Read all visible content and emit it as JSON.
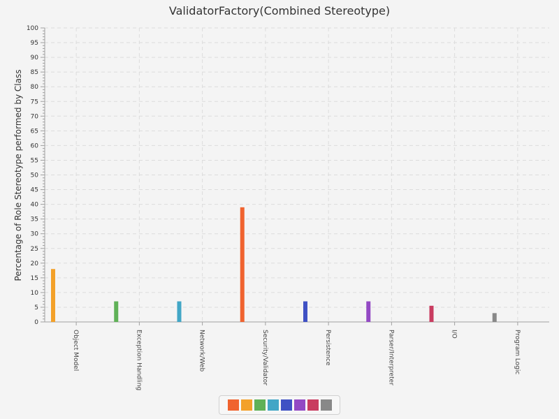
{
  "chart_data": {
    "type": "bar",
    "title": "ValidatorFactory(Combined Stereotype)",
    "xlabel": "",
    "ylabel": "Percentage of Role Stereotype performed by Class",
    "ylim": [
      0,
      100
    ],
    "y_ticks": [
      "0",
      "5",
      "10",
      "15",
      "20",
      "25",
      "30",
      "35",
      "40",
      "45",
      "50",
      "55",
      "60",
      "65",
      "70",
      "75",
      "80",
      "85",
      "90",
      "95",
      "100"
    ],
    "grid": true,
    "legend_placement": "bottom-center",
    "categories": [
      "Object Model",
      "Exception Handling",
      "Network/Web",
      "Security/Validator",
      "Persistence",
      "Parser/Interpreter",
      "I/O",
      "Program Logic"
    ],
    "values": [
      18,
      7,
      7,
      39,
      7,
      7,
      5.5,
      3
    ],
    "colors": [
      "#f3a12a",
      "#5fb157",
      "#42a6c6",
      "#f0632f",
      "#3f51c4",
      "#9349c4",
      "#c93c60",
      "#888888"
    ],
    "legend_colors": [
      "#f0632f",
      "#f3a12a",
      "#5fb157",
      "#42a6c6",
      "#3f51c4",
      "#9349c4",
      "#c93c60",
      "#888888"
    ]
  }
}
